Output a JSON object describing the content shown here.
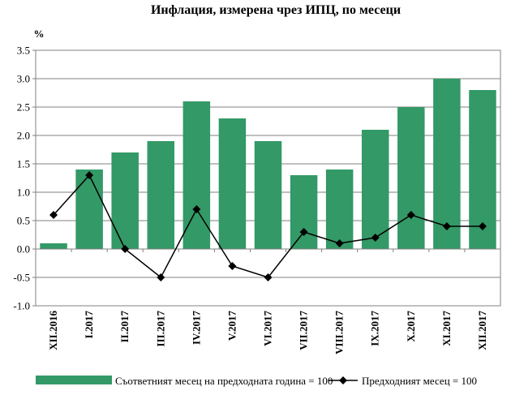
{
  "chart_data": {
    "type": "bar",
    "title": "Инфлация, измерена чрез ИПЦ, по месеци",
    "ylabel": "%",
    "ylim": [
      -1.0,
      3.5
    ],
    "yticks": [
      "3.5",
      "3.0",
      "2.5",
      "2.0",
      "1.5",
      "1.0",
      "0.5",
      "0.0",
      "-0.5",
      "-1.0"
    ],
    "ytick_values": [
      3.5,
      3.0,
      2.5,
      2.0,
      1.5,
      1.0,
      0.5,
      0.0,
      -0.5,
      -1.0
    ],
    "grid": true,
    "legend_position": "bottom",
    "categories": [
      "XII.2016",
      "I.2017",
      "II.2017",
      "III.2017",
      "IV.2017",
      "V.2017",
      "VI.2017",
      "VII.2017",
      "VIII.2017",
      "IX.2017",
      "X.2017",
      "XI.2017",
      "XII.2017"
    ],
    "series": [
      {
        "name": "Съответният месец на предходната година = 100",
        "type": "bar",
        "color": "#339966",
        "values": [
          0.1,
          1.4,
          1.7,
          1.9,
          2.6,
          2.3,
          1.9,
          1.3,
          1.4,
          2.1,
          2.5,
          3.0,
          2.8
        ]
      },
      {
        "name": "Предходният месец = 100",
        "type": "line",
        "color": "#000000",
        "values": [
          0.6,
          1.3,
          0.0,
          -0.5,
          0.7,
          -0.3,
          -0.5,
          0.3,
          0.1,
          0.2,
          0.6,
          0.4,
          0.4
        ]
      }
    ]
  }
}
